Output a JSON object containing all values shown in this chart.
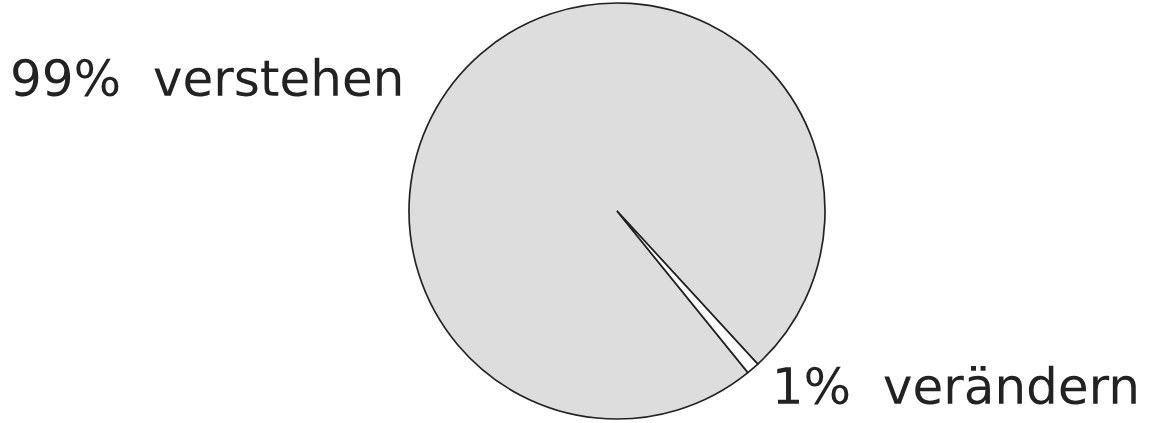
{
  "chart_data": {
    "type": "pie",
    "categories": [
      "verstehen",
      "verändern"
    ],
    "values": [
      99,
      1
    ],
    "value_labels": [
      "99%",
      "1%"
    ],
    "colors": [
      "#dddddd",
      "#ffffff"
    ]
  }
}
